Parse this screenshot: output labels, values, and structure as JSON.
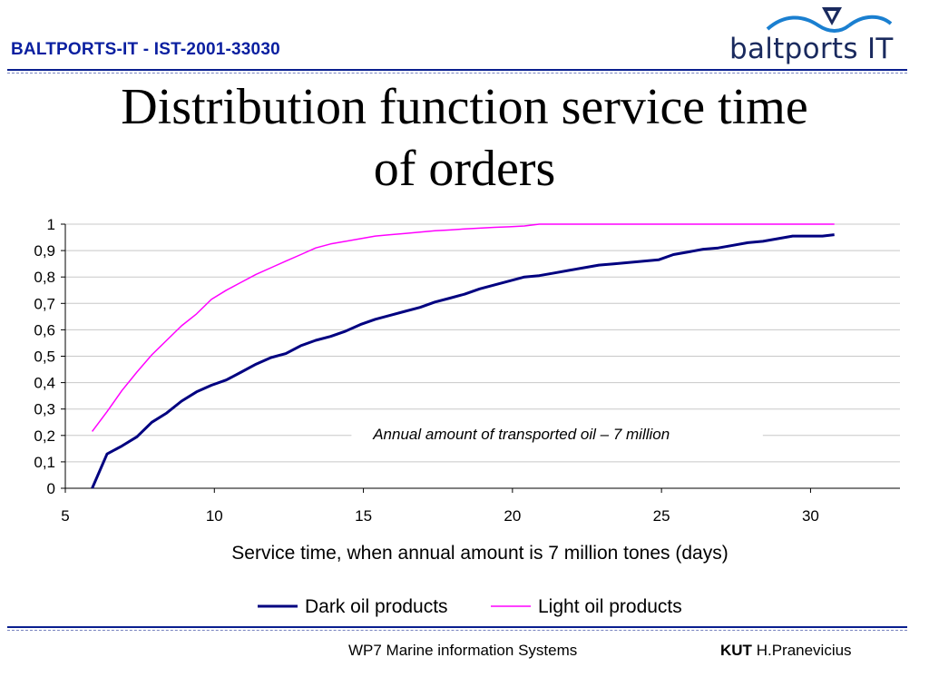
{
  "header": {
    "project_text": "BALTPORTS-IT - IST-2001-33030",
    "logo_text": "baltports IT"
  },
  "slide": {
    "title_line1": "Distribution function service time",
    "title_line2": "of orders"
  },
  "footer": {
    "workpackage": "WP7 Marine information Systems",
    "org": "KUT",
    "author": "H.Pranevicius"
  },
  "colors": {
    "accent": "#0a1fa0",
    "dark_series": "#000080",
    "light_series": "#ff00ff"
  },
  "chart_data": {
    "type": "line",
    "title": "",
    "annotation": "Annual amount of transported oil – 7 million",
    "xlabel": "Service time, when annual amount is 7 million tones (days)",
    "ylabel": "",
    "xlim": [
      5,
      33
    ],
    "ylim": [
      0,
      1
    ],
    "x_ticks": [
      5,
      10,
      15,
      20,
      25,
      30
    ],
    "x_tick_labels": [
      "5",
      "10",
      "15",
      "20",
      "25",
      "30"
    ],
    "y_ticks": [
      0,
      0.1,
      0.2,
      0.3,
      0.4,
      0.5,
      0.6,
      0.7,
      0.8,
      0.9,
      1
    ],
    "y_tick_labels": [
      "0",
      "0,1",
      "0,2",
      "0,3",
      "0,4",
      "0,5",
      "0,6",
      "0,7",
      "0,8",
      "0,9",
      "1"
    ],
    "grid": "horizontal",
    "legend_position": "bottom",
    "series": [
      {
        "name": "Dark oil products",
        "color": "#000080",
        "points": [
          [
            5.9,
            0.0
          ],
          [
            6.4,
            0.13
          ],
          [
            6.9,
            0.16
          ],
          [
            7.4,
            0.195
          ],
          [
            7.9,
            0.25
          ],
          [
            8.4,
            0.285
          ],
          [
            8.9,
            0.33
          ],
          [
            9.4,
            0.365
          ],
          [
            9.9,
            0.39
          ],
          [
            10.4,
            0.41
          ],
          [
            10.9,
            0.44
          ],
          [
            11.4,
            0.47
          ],
          [
            11.9,
            0.495
          ],
          [
            12.4,
            0.51
          ],
          [
            12.9,
            0.54
          ],
          [
            13.4,
            0.56
          ],
          [
            13.9,
            0.575
          ],
          [
            14.4,
            0.595
          ],
          [
            14.9,
            0.62
          ],
          [
            15.4,
            0.64
          ],
          [
            15.9,
            0.655
          ],
          [
            16.4,
            0.67
          ],
          [
            16.9,
            0.685
          ],
          [
            17.4,
            0.705
          ],
          [
            17.9,
            0.72
          ],
          [
            18.4,
            0.735
          ],
          [
            18.9,
            0.755
          ],
          [
            19.4,
            0.77
          ],
          [
            19.9,
            0.785
          ],
          [
            20.4,
            0.8
          ],
          [
            20.9,
            0.805
          ],
          [
            21.4,
            0.815
          ],
          [
            21.9,
            0.825
          ],
          [
            22.4,
            0.835
          ],
          [
            22.9,
            0.845
          ],
          [
            23.4,
            0.85
          ],
          [
            23.9,
            0.855
          ],
          [
            24.4,
            0.86
          ],
          [
            24.9,
            0.865
          ],
          [
            25.4,
            0.885
          ],
          [
            25.9,
            0.895
          ],
          [
            26.4,
            0.905
          ],
          [
            26.9,
            0.91
          ],
          [
            27.4,
            0.92
          ],
          [
            27.9,
            0.93
          ],
          [
            28.4,
            0.935
          ],
          [
            28.9,
            0.945
          ],
          [
            29.4,
            0.955
          ],
          [
            29.9,
            0.955
          ],
          [
            30.4,
            0.955
          ],
          [
            30.8,
            0.96
          ]
        ]
      },
      {
        "name": "Light oil products",
        "color": "#ff00ff",
        "points": [
          [
            5.9,
            0.215
          ],
          [
            6.4,
            0.29
          ],
          [
            6.9,
            0.37
          ],
          [
            7.4,
            0.44
          ],
          [
            7.9,
            0.505
          ],
          [
            8.4,
            0.56
          ],
          [
            8.9,
            0.615
          ],
          [
            9.4,
            0.66
          ],
          [
            9.9,
            0.715
          ],
          [
            10.4,
            0.75
          ],
          [
            10.9,
            0.78
          ],
          [
            11.4,
            0.81
          ],
          [
            11.9,
            0.835
          ],
          [
            12.4,
            0.86
          ],
          [
            12.9,
            0.885
          ],
          [
            13.4,
            0.91
          ],
          [
            13.9,
            0.925
          ],
          [
            14.4,
            0.935
          ],
          [
            14.9,
            0.945
          ],
          [
            15.4,
            0.955
          ],
          [
            15.9,
            0.96
          ],
          [
            16.4,
            0.965
          ],
          [
            16.9,
            0.97
          ],
          [
            17.4,
            0.975
          ],
          [
            17.9,
            0.978
          ],
          [
            18.4,
            0.982
          ],
          [
            18.9,
            0.985
          ],
          [
            19.4,
            0.988
          ],
          [
            19.9,
            0.99
          ],
          [
            20.4,
            0.993
          ],
          [
            20.9,
            1.0
          ],
          [
            21.9,
            1.0
          ],
          [
            22.9,
            1.0
          ],
          [
            23.9,
            1.0
          ],
          [
            24.9,
            1.0
          ],
          [
            25.9,
            1.0
          ],
          [
            26.9,
            1.0
          ],
          [
            27.9,
            1.0
          ],
          [
            28.9,
            1.0
          ],
          [
            29.9,
            1.0
          ],
          [
            30.8,
            1.0
          ]
        ]
      }
    ]
  }
}
